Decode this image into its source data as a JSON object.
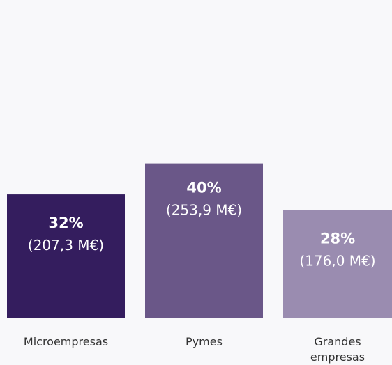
{
  "chart_data": {
    "type": "bar",
    "categories": [
      "Microempresas",
      "Pymes",
      "Grandes empresas"
    ],
    "category_lines": [
      [
        "Microempresas"
      ],
      [
        "Pymes"
      ],
      [
        "Grandes",
        "empresas"
      ]
    ],
    "values": [
      32,
      40,
      28
    ],
    "value_labels": [
      "32%",
      "40%",
      "28%"
    ],
    "amount_labels": [
      "(207,3 M€)",
      "(253,9 M€)",
      "(176,0 M€)"
    ],
    "amounts_meur": [
      207.3,
      253.9,
      176.0
    ],
    "colors": [
      "#341d5e",
      "#6a5788",
      "#9a8cb0"
    ],
    "title": "",
    "xlabel": "",
    "ylabel": "",
    "ylim": [
      0,
      60
    ],
    "grid": false,
    "legend": "none"
  }
}
